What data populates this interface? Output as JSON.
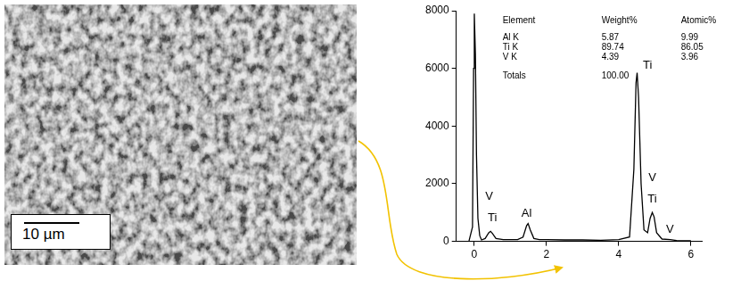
{
  "image": {
    "scale_bar": "10 µm"
  },
  "chart_data": {
    "type": "line",
    "x": [
      -0.15,
      -0.05,
      -0.02,
      0,
      0.03,
      0.06,
      0.1,
      0.15,
      0.2,
      0.3,
      0.4,
      0.45,
      0.5,
      0.6,
      0.8,
      1.0,
      1.2,
      1.35,
      1.45,
      1.49,
      1.55,
      1.65,
      1.8,
      2.0,
      2.5,
      3.0,
      3.5,
      4.0,
      4.3,
      4.42,
      4.48,
      4.51,
      4.55,
      4.62,
      4.7,
      4.8,
      4.87,
      4.93,
      4.98,
      5.05,
      5.2,
      5.43,
      5.6,
      6.0
    ],
    "values": [
      0,
      500,
      6000,
      7900,
      6500,
      3000,
      800,
      200,
      50,
      100,
      300,
      350,
      280,
      100,
      60,
      60,
      60,
      150,
      550,
      620,
      400,
      100,
      60,
      60,
      50,
      50,
      40,
      60,
      150,
      2500,
      5500,
      5850,
      5000,
      2000,
      400,
      300,
      800,
      1000,
      850,
      300,
      80,
      60,
      30,
      20
    ],
    "color": "#000000",
    "xlim": [
      -0.5,
      6.3
    ],
    "xticks": [
      0,
      2,
      4,
      6
    ],
    "ylim": [
      0,
      8000
    ],
    "yticks": [
      0,
      2000,
      4000,
      6000,
      8000
    ],
    "grid": false,
    "annotations": [
      {
        "text": "V",
        "x": 0.41,
        "y": 1550
      },
      {
        "text": "Ti",
        "x": 0.5,
        "y": 800
      },
      {
        "text": "Al",
        "x": 1.45,
        "y": 950
      },
      {
        "text": "Ti",
        "x": 4.8,
        "y": 6100
      },
      {
        "text": "V",
        "x": 4.93,
        "y": 2200
      },
      {
        "text": "Ti",
        "x": 4.93,
        "y": 1450
      },
      {
        "text": "V",
        "x": 5.42,
        "y": 400
      }
    ],
    "table": {
      "header": [
        "Element",
        "Weight%",
        "Atomic%"
      ],
      "rows": [
        [
          "Al K",
          "5.87",
          "9.99"
        ],
        [
          "Ti K",
          "89.74",
          "86.05"
        ],
        [
          "V K",
          "4.39",
          "3.96"
        ]
      ],
      "totals": [
        "Totals",
        "100.00"
      ]
    }
  }
}
